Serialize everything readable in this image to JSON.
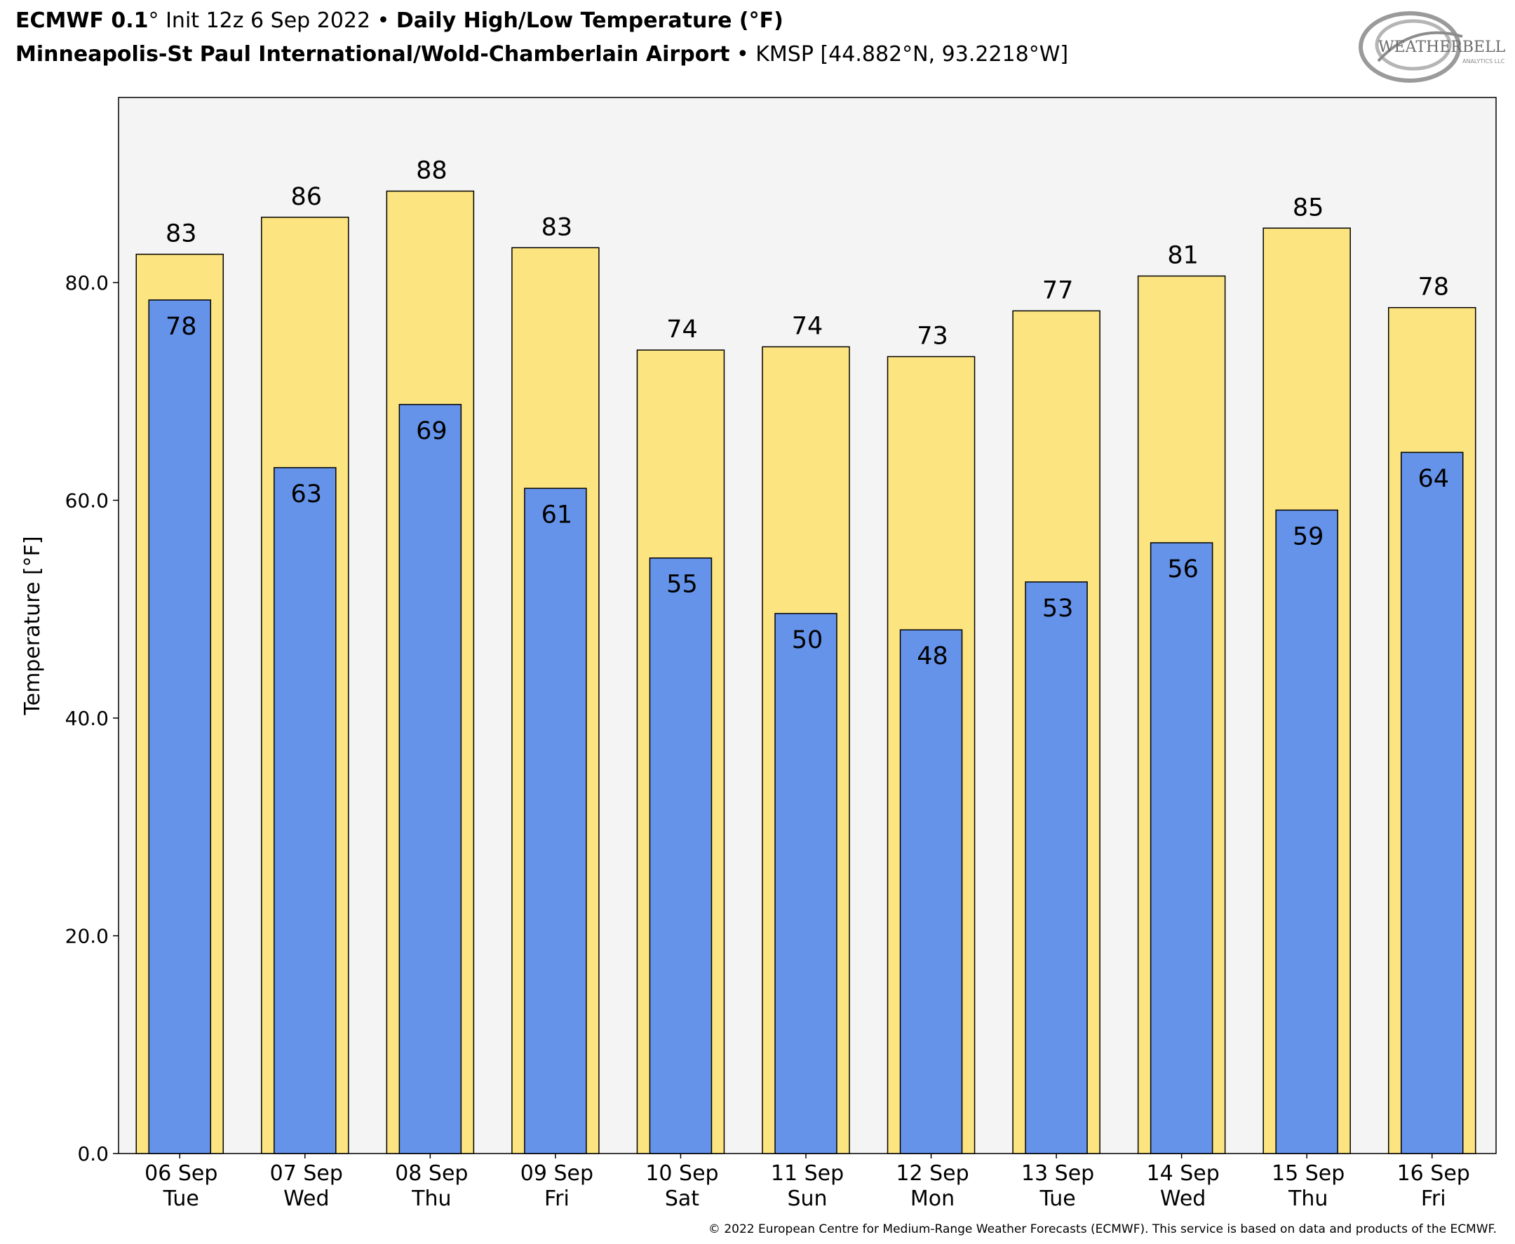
{
  "header": {
    "model": "ECMWF 0.1",
    "deg": "°",
    "init": " Init 12z 6 Sep 2022 ",
    "bullet": "•",
    "product": "Daily High/Low Temperature (°F)",
    "station_name": "Minneapolis-St Paul International/Wold-Chamberlain Airport",
    "station_meta": "KMSP [44.882°N, 93.2218°W]"
  },
  "logo": {
    "text": "WEATHERBELL",
    "subtext": "ANALYTICS LLC"
  },
  "footer": {
    "copyright": "© 2022 European Centre for Medium-Range Weather Forecasts (ECMWF). This service is based on data and products of the ECMWF."
  },
  "colors": {
    "high": "#fce480",
    "low": "#6593ea",
    "plot_bg": "#f4f4f5",
    "outline": "#000000"
  },
  "chart_data": {
    "type": "bar",
    "title": "",
    "xlabel": "",
    "ylabel": "Temperature [°F]",
    "ylim": [
      0,
      97
    ],
    "yticks": [
      "0.0",
      "20.0",
      "40.0",
      "60.0",
      "80.0"
    ],
    "ytick_values": [
      0,
      20,
      40,
      60,
      80
    ],
    "grid": false,
    "categories": [
      [
        "06 Sep",
        "Tue"
      ],
      [
        "07 Sep",
        "Wed"
      ],
      [
        "08 Sep",
        "Thu"
      ],
      [
        "09 Sep",
        "Fri"
      ],
      [
        "10 Sep",
        "Sat"
      ],
      [
        "11 Sep",
        "Sun"
      ],
      [
        "12 Sep",
        "Mon"
      ],
      [
        "13 Sep",
        "Tue"
      ],
      [
        "14 Sep",
        "Wed"
      ],
      [
        "15 Sep",
        "Thu"
      ],
      [
        "16 Sep",
        "Fri"
      ]
    ],
    "series": [
      {
        "key": "high",
        "values": [
          82.6,
          86.0,
          88.4,
          83.2,
          73.8,
          74.1,
          73.2,
          77.4,
          80.6,
          85.0,
          77.7
        ],
        "labels": [
          "83",
          "86",
          "88",
          "83",
          "74",
          "74",
          "73",
          "77",
          "81",
          "85",
          "78"
        ]
      },
      {
        "key": "low",
        "values": [
          78.4,
          63.0,
          68.8,
          61.1,
          54.7,
          49.6,
          48.1,
          52.5,
          56.1,
          59.1,
          64.4
        ],
        "labels": [
          "78",
          "63",
          "69",
          "61",
          "55",
          "50",
          "48",
          "53",
          "56",
          "59",
          "64"
        ]
      }
    ]
  }
}
